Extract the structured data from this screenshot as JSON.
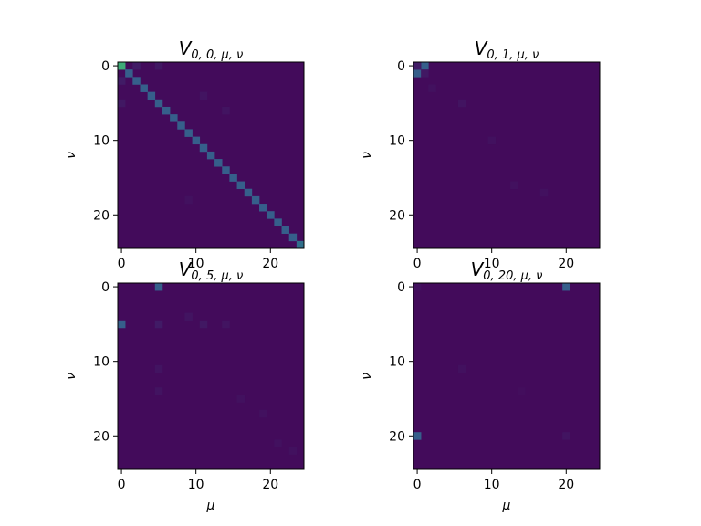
{
  "chart_data": [
    {
      "type": "heatmap",
      "title": "V_{0,0,μ,ν}",
      "title_main": "V",
      "title_sub": "0, 0, μ, ν",
      "xlabel": "",
      "ylabel": "ν",
      "size": 25,
      "x_ticks": [
        0,
        10,
        20
      ],
      "y_ticks": [
        0,
        10,
        20
      ],
      "colormap": "viridis",
      "background_level": 0.03,
      "cells": [
        [
          0,
          0,
          0.62
        ],
        [
          1,
          1,
          0.3
        ],
        [
          2,
          2,
          0.3
        ],
        [
          3,
          3,
          0.3
        ],
        [
          4,
          4,
          0.3
        ],
        [
          5,
          5,
          0.3
        ],
        [
          6,
          6,
          0.3
        ],
        [
          7,
          7,
          0.3
        ],
        [
          8,
          8,
          0.3
        ],
        [
          9,
          9,
          0.3
        ],
        [
          10,
          10,
          0.3
        ],
        [
          11,
          11,
          0.3
        ],
        [
          12,
          12,
          0.3
        ],
        [
          13,
          13,
          0.3
        ],
        [
          14,
          14,
          0.3
        ],
        [
          15,
          15,
          0.3
        ],
        [
          16,
          16,
          0.3
        ],
        [
          17,
          17,
          0.3
        ],
        [
          18,
          18,
          0.3
        ],
        [
          19,
          19,
          0.3
        ],
        [
          20,
          20,
          0.3
        ],
        [
          21,
          21,
          0.3
        ],
        [
          22,
          22,
          0.3
        ],
        [
          23,
          23,
          0.3
        ],
        [
          24,
          24,
          0.36
        ],
        [
          0,
          2,
          0.08
        ],
        [
          2,
          0,
          0.08
        ],
        [
          5,
          0,
          0.07
        ],
        [
          0,
          5,
          0.07
        ],
        [
          11,
          4,
          0.06
        ],
        [
          14,
          6,
          0.06
        ],
        [
          9,
          18,
          0.05
        ]
      ]
    },
    {
      "type": "heatmap",
      "title": "V_{0,1,μ,ν}",
      "title_main": "V",
      "title_sub": "0, 1, μ, ν",
      "xlabel": "",
      "ylabel": "ν",
      "size": 25,
      "x_ticks": [
        0,
        10,
        20
      ],
      "y_ticks": [
        0,
        10,
        20
      ],
      "colormap": "viridis",
      "background_level": 0.03,
      "cells": [
        [
          1,
          0,
          0.3
        ],
        [
          0,
          1,
          0.3
        ],
        [
          0,
          0,
          0.08
        ],
        [
          1,
          1,
          0.07
        ],
        [
          6,
          5,
          0.06
        ],
        [
          10,
          10,
          0.05
        ],
        [
          13,
          16,
          0.05
        ],
        [
          17,
          17,
          0.05
        ],
        [
          2,
          3,
          0.05
        ]
      ]
    },
    {
      "type": "heatmap",
      "title": "V_{0,5,μ,ν}",
      "title_main": "V",
      "title_sub": "0, 5, μ, ν",
      "xlabel": "μ",
      "ylabel": "ν",
      "size": 25,
      "x_ticks": [
        0,
        10,
        20
      ],
      "y_ticks": [
        0,
        10,
        20
      ],
      "colormap": "viridis",
      "background_level": 0.03,
      "cells": [
        [
          5,
          0,
          0.3
        ],
        [
          0,
          5,
          0.3
        ],
        [
          5,
          5,
          0.08
        ],
        [
          9,
          4,
          0.06
        ],
        [
          11,
          5,
          0.07
        ],
        [
          14,
          5,
          0.06
        ],
        [
          5,
          11,
          0.06
        ],
        [
          5,
          14,
          0.06
        ],
        [
          16,
          15,
          0.05
        ],
        [
          19,
          17,
          0.05
        ],
        [
          21,
          21,
          0.05
        ],
        [
          23,
          22,
          0.05
        ]
      ]
    },
    {
      "type": "heatmap",
      "title": "V_{0,20,μ,ν}",
      "title_main": "V",
      "title_sub": "0, 20, μ, ν",
      "xlabel": "μ",
      "ylabel": "ν",
      "size": 25,
      "x_ticks": [
        0,
        10,
        20
      ],
      "y_ticks": [
        0,
        10,
        20
      ],
      "colormap": "viridis",
      "background_level": 0.03,
      "cells": [
        [
          20,
          0,
          0.3
        ],
        [
          0,
          20,
          0.3
        ],
        [
          20,
          20,
          0.06
        ],
        [
          0,
          0,
          0.05
        ],
        [
          6,
          11,
          0.05
        ],
        [
          14,
          14,
          0.04
        ]
      ]
    }
  ]
}
